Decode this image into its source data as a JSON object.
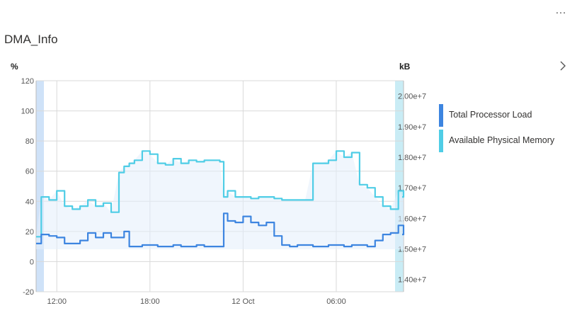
{
  "header": {
    "title": "DMA_Info",
    "more_label": "…"
  },
  "colors": {
    "processor": "#3d85e0",
    "memory": "#4fcde6",
    "band_left": "#cfe2f8",
    "band_right": "#c9ecf5",
    "grid": "#d9d9d9",
    "tick": "#555555"
  },
  "chart_data": {
    "type": "line",
    "title": "DMA_Info",
    "left_axis": {
      "unit": "%",
      "ticks": [
        120,
        100,
        80,
        60,
        40,
        20,
        0,
        -20
      ],
      "range": [
        -20,
        120
      ]
    },
    "right_axis": {
      "unit": "kB",
      "ticks": [
        "2.00e+7",
        "1.90e+7",
        "1.80e+7",
        "1.70e+7",
        "1.60e+7",
        "1.50e+7",
        "1.40e+7"
      ],
      "range": [
        13600000,
        20500000
      ]
    },
    "x_axis": {
      "tick_labels": [
        "12:00",
        "18:00",
        "12 Oct",
        "06:00"
      ]
    },
    "legend_position": "right",
    "series": [
      {
        "name": "Total Processor Load",
        "axis": "left",
        "x": [
          "10:40",
          "11:00",
          "11:30",
          "12:00",
          "12:30",
          "13:00",
          "13:30",
          "14:00",
          "14:30",
          "15:00",
          "15:30",
          "16:00",
          "16:20",
          "16:40",
          "17:00",
          "17:30",
          "18:00",
          "18:30",
          "19:00",
          "19:30",
          "20:00",
          "20:30",
          "21:00",
          "21:30",
          "22:00",
          "22:30",
          "22:45",
          "23:00",
          "23:30",
          "00:00",
          "00:30",
          "01:00",
          "01:30",
          "02:00",
          "02:30",
          "03:00",
          "03:30",
          "04:00",
          "04:30",
          "05:00",
          "05:30",
          "06:00",
          "06:30",
          "07:00",
          "07:30",
          "08:00",
          "08:30",
          "09:00",
          "09:30",
          "10:00",
          "10:20"
        ],
        "values": [
          12,
          18,
          17,
          16,
          12,
          12,
          14,
          19,
          16,
          19,
          16,
          16,
          20,
          10,
          10,
          11,
          11,
          10,
          10,
          11,
          10,
          10,
          11,
          10,
          10,
          10,
          32,
          27,
          26,
          30,
          26,
          24,
          26,
          17,
          11,
          10,
          11,
          11,
          10,
          10,
          11,
          11,
          10,
          11,
          11,
          10,
          14,
          18,
          19,
          24,
          18
        ]
      },
      {
        "name": "Available Physical Memory",
        "axis": "right",
        "x": [
          "10:40",
          "11:00",
          "11:30",
          "12:00",
          "12:30",
          "13:00",
          "13:30",
          "14:00",
          "14:30",
          "15:00",
          "15:30",
          "16:00",
          "16:20",
          "16:40",
          "17:00",
          "17:30",
          "18:00",
          "18:30",
          "19:00",
          "19:30",
          "20:00",
          "20:30",
          "21:00",
          "21:30",
          "22:00",
          "22:30",
          "22:45",
          "23:00",
          "23:30",
          "00:00",
          "00:30",
          "01:00",
          "01:30",
          "02:00",
          "02:30",
          "03:00",
          "03:30",
          "04:00",
          "04:30",
          "05:00",
          "05:30",
          "06:00",
          "06:30",
          "07:00",
          "07:30",
          "08:00",
          "08:30",
          "09:00",
          "09:30",
          "10:00",
          "10:20"
        ],
        "values": [
          15400000,
          16700000,
          16600000,
          16900000,
          16400000,
          16300000,
          16400000,
          16600000,
          16400000,
          16500000,
          16200000,
          17500000,
          17700000,
          17800000,
          17900000,
          18200000,
          18100000,
          17800000,
          17750000,
          17950000,
          17800000,
          17900000,
          17850000,
          17900000,
          17900000,
          17850000,
          16700000,
          16900000,
          16700000,
          16700000,
          16650000,
          16700000,
          16700000,
          16650000,
          16600000,
          16600000,
          16600000,
          16600000,
          17800000,
          17800000,
          17900000,
          18200000,
          18000000,
          18150000,
          17100000,
          17000000,
          16700000,
          16400000,
          16300000,
          16900000,
          16700000
        ]
      }
    ]
  }
}
